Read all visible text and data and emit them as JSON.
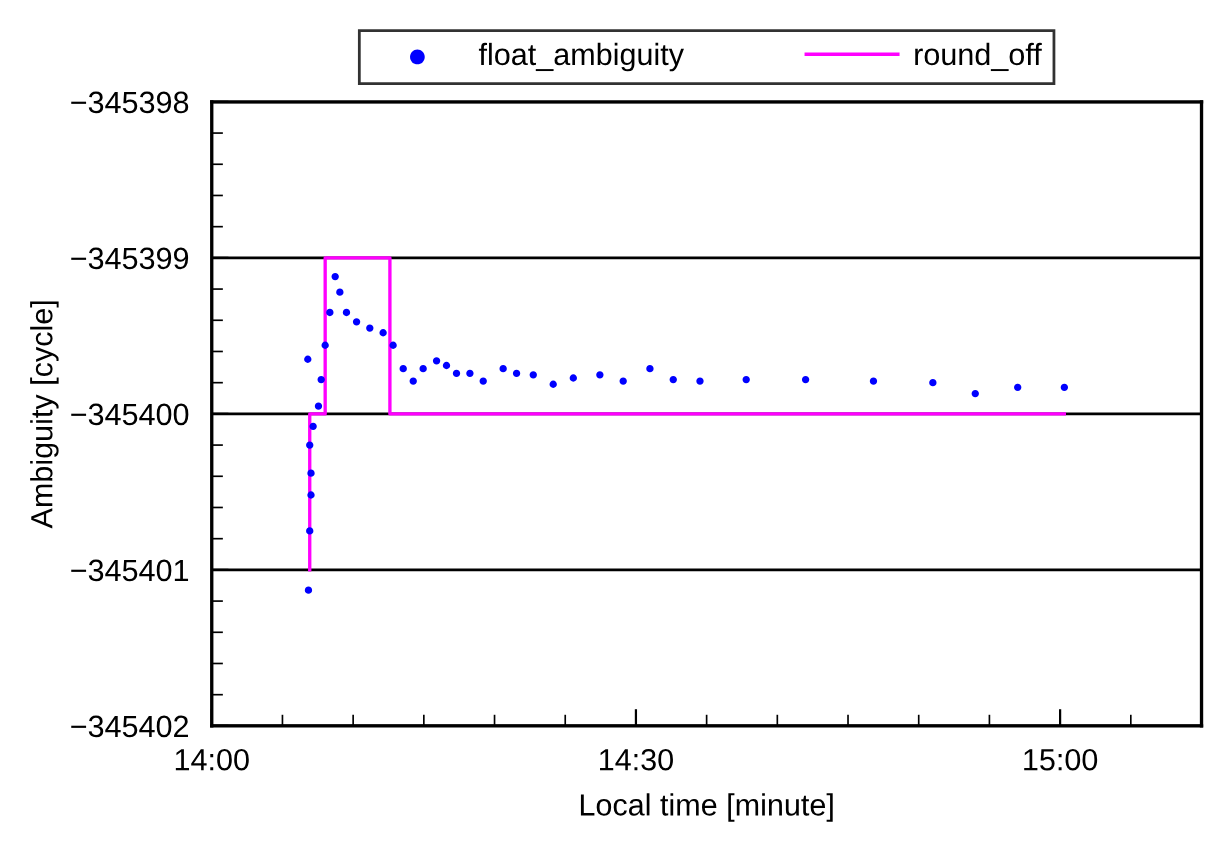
{
  "chart_data": {
    "type": "scatter",
    "xlabel": "Local time [minute]",
    "ylabel": "Ambiguity [cycle]",
    "xlim": [
      14,
      15.1667
    ],
    "xticks": [
      {
        "value": 14,
        "label": "14:00"
      },
      {
        "value": 14.5,
        "label": "14:30"
      },
      {
        "value": 15,
        "label": "15:00"
      }
    ],
    "ylim": [
      -345402,
      -345398
    ],
    "yticks": [
      {
        "value": -345402,
        "label": "−345402"
      },
      {
        "value": -345401,
        "label": "−345401"
      },
      {
        "value": -345400,
        "label": "−345400"
      },
      {
        "value": -345399,
        "label": "−345399"
      },
      {
        "value": -345398,
        "label": "−345398"
      }
    ],
    "grid": "y",
    "legend": "top",
    "series": [
      {
        "name": "float_ambiguity",
        "marker": "circle",
        "color": "#0000ff",
        "x": [
          14.1132,
          14.114,
          14.1155,
          14.117,
          14.117,
          14.1155,
          14.1195,
          14.1258,
          14.129,
          14.1337,
          14.1392,
          14.1455,
          14.151,
          14.1588,
          14.1707,
          14.1863,
          14.202,
          14.2138,
          14.2257,
          14.2375,
          14.2492,
          14.265,
          14.2767,
          14.2885,
          14.3043,
          14.32,
          14.3435,
          14.3593,
          14.379,
          14.4025,
          14.4262,
          14.4575,
          14.485,
          14.5165,
          14.544,
          14.5755,
          14.63,
          14.7,
          14.78,
          14.85,
          14.9,
          14.95,
          15.005
        ],
        "values": [
          -345399.65,
          -345401.13,
          -345400.75,
          -345400.52,
          -345400.38,
          -345400.2,
          -345400.08,
          -345399.95,
          -345399.78,
          -345399.56,
          -345399.35,
          -345399.12,
          -345399.22,
          -345399.35,
          -345399.41,
          -345399.45,
          -345399.48,
          -345399.56,
          -345399.71,
          -345399.79,
          -345399.71,
          -345399.66,
          -345399.69,
          -345399.74,
          -345399.74,
          -345399.79,
          -345399.71,
          -345399.74,
          -345399.75,
          -345399.81,
          -345399.77,
          -345399.75,
          -345399.79,
          -345399.71,
          -345399.78,
          -345399.79,
          -345399.78,
          -345399.78,
          -345399.79,
          -345399.8,
          -345399.87,
          -345399.83,
          -345399.83
        ]
      },
      {
        "name": "round_off",
        "type": "line",
        "marker": "none",
        "line_style": "solid",
        "color": "#ff00ff",
        "x": [
          14.1155,
          14.1155,
          14.1337,
          14.1337,
          14.21,
          14.21,
          15.005
        ],
        "values": [
          -345401,
          -345400,
          -345400,
          -345399,
          -345399,
          -345400,
          -345400
        ]
      }
    ]
  }
}
